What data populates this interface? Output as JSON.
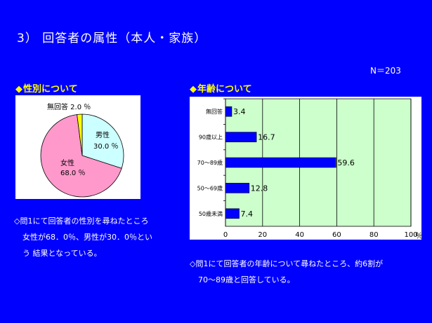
{
  "title": "3） 回答者の属性（本人・家族）",
  "sample_size": "N＝203",
  "gender_section": {
    "heading": "性別について",
    "description_lines": [
      "◇問1にて回答者の性別を尋ねたところ",
      "女性が68．0％、男性が30．0％とい",
      "う 結果となっている。"
    ]
  },
  "age_section": {
    "heading": "年齢について",
    "description_lines": [
      "◇問1にて回答者の年齢について尋ねたところ、約6割が",
      "70〜89歳と回答している。"
    ]
  },
  "colors": {
    "background": "#0000ff",
    "heading": "#ffff00",
    "pie_male": "#ccffff",
    "pie_female": "#ff99cc",
    "pie_none": "#ffff00",
    "bar_fill": "#0000ff",
    "bar_plot_bg": "#ccffcc"
  },
  "chart_data": [
    {
      "type": "pie",
      "title": "",
      "slices": [
        {
          "label": "男性",
          "value": 30.0,
          "value_text": "30.0",
          "unit": "％",
          "color": "#ccffff"
        },
        {
          "label": "女性",
          "value": 68.0,
          "value_text": "68.0",
          "unit": "％",
          "color": "#ff99cc"
        },
        {
          "label": "無回答",
          "value": 2.0,
          "value_text": "2.0",
          "unit": "％",
          "color": "#ffff00"
        }
      ]
    },
    {
      "type": "bar",
      "orientation": "horizontal",
      "title": "",
      "categories": [
        "無回答",
        "90歳以上",
        "70〜89歳",
        "50〜69歳",
        "50歳未満"
      ],
      "values": [
        3.4,
        16.7,
        59.6,
        12.8,
        7.4
      ],
      "data_labels": [
        "3.4",
        "16.7",
        "59.6",
        "12.8",
        "7.4"
      ],
      "xlim": [
        0,
        100
      ],
      "xticks": [
        "0",
        "20",
        "40",
        "60",
        "80",
        "100"
      ],
      "x_unit": "％",
      "grid": true
    }
  ]
}
